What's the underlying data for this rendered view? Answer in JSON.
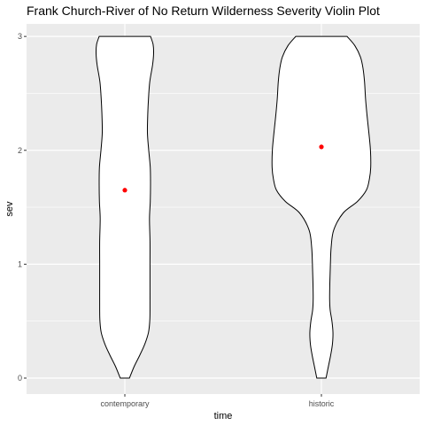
{
  "chart_data": {
    "type": "violin",
    "title": "Frank Church-River of No Return Wilderness Severity Violin Plot",
    "xlabel": "time",
    "ylabel": "sev",
    "categories": [
      "contemporary",
      "historic"
    ],
    "ylim": [
      -0.14,
      3.11
    ],
    "yticks": [
      0,
      1,
      2,
      3
    ],
    "grid": true,
    "series": [
      {
        "category": "contemporary",
        "mean": 1.65,
        "density_profile": [
          {
            "y": 0.0,
            "w": 0.18
          },
          {
            "y": 0.1,
            "w": 0.36
          },
          {
            "y": 0.2,
            "w": 0.58
          },
          {
            "y": 0.3,
            "w": 0.78
          },
          {
            "y": 0.4,
            "w": 0.92
          },
          {
            "y": 0.5,
            "w": 0.97
          },
          {
            "y": 0.6,
            "w": 0.98
          },
          {
            "y": 0.8,
            "w": 0.98
          },
          {
            "y": 1.0,
            "w": 0.98
          },
          {
            "y": 1.2,
            "w": 0.98
          },
          {
            "y": 1.4,
            "w": 0.96
          },
          {
            "y": 1.55,
            "w": 0.99
          },
          {
            "y": 1.7,
            "w": 1.0
          },
          {
            "y": 1.85,
            "w": 0.99
          },
          {
            "y": 2.0,
            "w": 0.93
          },
          {
            "y": 2.15,
            "w": 0.88
          },
          {
            "y": 2.3,
            "w": 0.89
          },
          {
            "y": 2.45,
            "w": 0.92
          },
          {
            "y": 2.6,
            "w": 0.97
          },
          {
            "y": 2.75,
            "w": 1.08
          },
          {
            "y": 2.85,
            "w": 1.12
          },
          {
            "y": 2.93,
            "w": 1.1
          },
          {
            "y": 3.0,
            "w": 1.0
          }
        ]
      },
      {
        "category": "historic",
        "mean": 2.03,
        "density_profile": [
          {
            "y": 0.0,
            "w": 0.18
          },
          {
            "y": 0.1,
            "w": 0.27
          },
          {
            "y": 0.2,
            "w": 0.36
          },
          {
            "y": 0.3,
            "w": 0.43
          },
          {
            "y": 0.4,
            "w": 0.45
          },
          {
            "y": 0.5,
            "w": 0.41
          },
          {
            "y": 0.6,
            "w": 0.34
          },
          {
            "y": 0.7,
            "w": 0.32
          },
          {
            "y": 0.85,
            "w": 0.33
          },
          {
            "y": 1.0,
            "w": 0.35
          },
          {
            "y": 1.15,
            "w": 0.38
          },
          {
            "y": 1.3,
            "w": 0.48
          },
          {
            "y": 1.45,
            "w": 0.85
          },
          {
            "y": 1.55,
            "w": 1.4
          },
          {
            "y": 1.65,
            "w": 1.75
          },
          {
            "y": 1.75,
            "w": 1.87
          },
          {
            "y": 1.85,
            "w": 1.92
          },
          {
            "y": 2.0,
            "w": 1.91
          },
          {
            "y": 2.15,
            "w": 1.85
          },
          {
            "y": 2.3,
            "w": 1.78
          },
          {
            "y": 2.45,
            "w": 1.72
          },
          {
            "y": 2.6,
            "w": 1.68
          },
          {
            "y": 2.72,
            "w": 1.62
          },
          {
            "y": 2.82,
            "w": 1.52
          },
          {
            "y": 2.92,
            "w": 1.3
          },
          {
            "y": 3.0,
            "w": 1.0
          }
        ]
      }
    ],
    "colors": {
      "panel": "#ebebeb",
      "grid": "#ffffff",
      "violin_fill": "#ffffff",
      "violin_stroke": "#000000",
      "mean_point": "#ff0000"
    }
  }
}
